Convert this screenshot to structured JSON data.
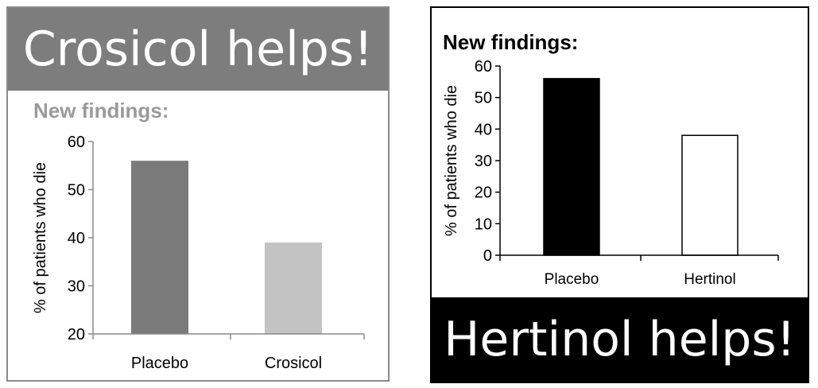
{
  "left_panel": {
    "banner_text": "Crosicol helps!",
    "subtitle": "New findings:"
  },
  "right_panel": {
    "banner_text": "Hertinol helps!",
    "subtitle": "New findings:"
  },
  "colors": {
    "left_banner": "#7d7d7d",
    "left_subtitle": "#9a9a9a",
    "left_bar_placebo": "#7a7a7a",
    "left_bar_drug": "#c3c3c3",
    "right_banner": "#000000",
    "right_bar_placebo": "#000000",
    "right_bar_drug": "#ffffff"
  },
  "chart_data": [
    {
      "type": "bar",
      "categories": [
        "Placebo",
        "Crosicol"
      ],
      "values": [
        56,
        39
      ],
      "ylabel": "% of patients who die",
      "ylim": [
        20,
        60
      ],
      "yticks": [
        20,
        30,
        40,
        50,
        60
      ],
      "grid": false
    },
    {
      "type": "bar",
      "categories": [
        "Placebo",
        "Hertinol"
      ],
      "values": [
        56,
        38
      ],
      "ylabel": "% of patients who die",
      "ylim": [
        0,
        60
      ],
      "yticks": [
        0,
        10,
        20,
        30,
        40,
        50,
        60
      ],
      "grid": false
    }
  ]
}
